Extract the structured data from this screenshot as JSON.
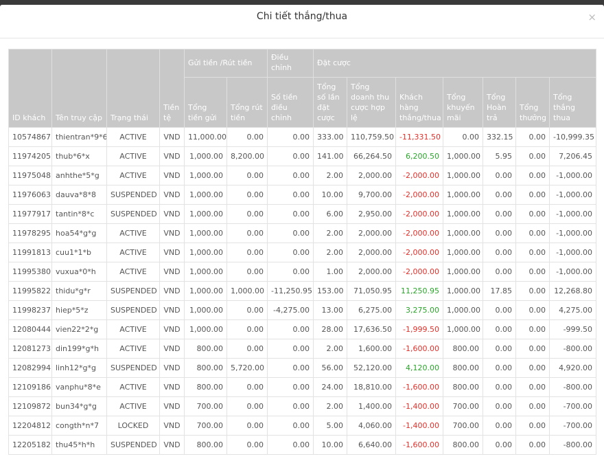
{
  "modal": {
    "title": "Chi tiết thắng/thua",
    "close": "×"
  },
  "table": {
    "groups": [
      "Gửi tiền /Rút tiền",
      "Điều chỉnh",
      "Đặt cược"
    ],
    "headers": [
      "ID khách",
      "Tên truy cập",
      "Trạng thái",
      "Tiền tệ",
      "Tổng tiền gửi",
      "Tổng rút tiền",
      "Số tiền điều chỉnh",
      "Tổng số lần đặt cược",
      "Tổng doanh thu cược hợp lệ",
      "Khách hàng thắng/thua",
      "Tổng khuyến mãi",
      "Tổng Hoàn trả",
      "Tổng thưởng",
      "Tổng thắng thua"
    ],
    "rows": [
      [
        "10574867",
        "thientran*9*6",
        "ACTIVE",
        "VND",
        "11,000.00",
        "0.00",
        "0.00",
        "333.00",
        "110,759.50",
        "-11,331.50",
        "0.00",
        "332.15",
        "0.00",
        "-10,999.35"
      ],
      [
        "11974205",
        "thub*6*x",
        "ACTIVE",
        "VND",
        "1,000.00",
        "8,200.00",
        "0.00",
        "141.00",
        "66,264.50",
        "6,200.50",
        "1,000.00",
        "5.95",
        "0.00",
        "7,206.45"
      ],
      [
        "11975048",
        "anhthe*5*g",
        "ACTIVE",
        "VND",
        "1,000.00",
        "0.00",
        "0.00",
        "2.00",
        "2,000.00",
        "-2,000.00",
        "1,000.00",
        "0.00",
        "0.00",
        "-1,000.00"
      ],
      [
        "11976063",
        "dauva*8*8",
        "SUSPENDED",
        "VND",
        "1,000.00",
        "0.00",
        "0.00",
        "10.00",
        "9,700.00",
        "-2,000.00",
        "1,000.00",
        "0.00",
        "0.00",
        "-1,000.00"
      ],
      [
        "11977917",
        "tantin*8*c",
        "SUSPENDED",
        "VND",
        "1,000.00",
        "0.00",
        "0.00",
        "6.00",
        "2,950.00",
        "-2,000.00",
        "1,000.00",
        "0.00",
        "0.00",
        "-1,000.00"
      ],
      [
        "11978295",
        "hoa54*g*g",
        "ACTIVE",
        "VND",
        "1,000.00",
        "0.00",
        "0.00",
        "2.00",
        "2,000.00",
        "-2,000.00",
        "1,000.00",
        "0.00",
        "0.00",
        "-1,000.00"
      ],
      [
        "11991813",
        "cuu1*1*b",
        "ACTIVE",
        "VND",
        "1,000.00",
        "0.00",
        "0.00",
        "2.00",
        "2,000.00",
        "-2,000.00",
        "1,000.00",
        "0.00",
        "0.00",
        "-1,000.00"
      ],
      [
        "11995380",
        "vuxua*0*h",
        "ACTIVE",
        "VND",
        "1,000.00",
        "0.00",
        "0.00",
        "1.00",
        "2,000.00",
        "-2,000.00",
        "1,000.00",
        "0.00",
        "0.00",
        "-1,000.00"
      ],
      [
        "11995822",
        "thidu*g*r",
        "SUSPENDED",
        "VND",
        "1,000.00",
        "1,000.00",
        "-11,250.95",
        "153.00",
        "71,050.95",
        "11,250.95",
        "1,000.00",
        "17.85",
        "0.00",
        "12,268.80"
      ],
      [
        "11998237",
        "hiep*5*z",
        "SUSPENDED",
        "VND",
        "1,000.00",
        "0.00",
        "-4,275.00",
        "13.00",
        "6,275.00",
        "3,275.00",
        "1,000.00",
        "0.00",
        "0.00",
        "4,275.00"
      ],
      [
        "12080444",
        "vien22*2*g",
        "ACTIVE",
        "VND",
        "1,000.00",
        "0.00",
        "0.00",
        "28.00",
        "17,636.50",
        "-1,999.50",
        "1,000.00",
        "0.00",
        "0.00",
        "-999.50"
      ],
      [
        "12081273",
        "din199*g*h",
        "ACTIVE",
        "VND",
        "800.00",
        "0.00",
        "0.00",
        "2.00",
        "1,600.00",
        "-1,600.00",
        "800.00",
        "0.00",
        "0.00",
        "-800.00"
      ],
      [
        "12082994",
        "linh12*g*g",
        "SUSPENDED",
        "VND",
        "800.00",
        "5,720.00",
        "0.00",
        "56.00",
        "52,120.00",
        "4,120.00",
        "800.00",
        "0.00",
        "0.00",
        "4,920.00"
      ],
      [
        "12109186",
        "vanphu*8*e",
        "ACTIVE",
        "VND",
        "800.00",
        "0.00",
        "0.00",
        "24.00",
        "18,810.00",
        "-1,600.00",
        "800.00",
        "0.00",
        "0.00",
        "-800.00"
      ],
      [
        "12109872",
        "bun34*g*g",
        "ACTIVE",
        "VND",
        "700.00",
        "0.00",
        "0.00",
        "2.00",
        "1,400.00",
        "-1,400.00",
        "700.00",
        "0.00",
        "0.00",
        "-700.00"
      ],
      [
        "12204812",
        "congth*n*7",
        "LOCKED",
        "VND",
        "700.00",
        "0.00",
        "0.00",
        "5.00",
        "4,060.00",
        "-1,400.00",
        "700.00",
        "0.00",
        "0.00",
        "-700.00"
      ],
      [
        "12205182",
        "thu45*h*h",
        "SUSPENDED",
        "VND",
        "800.00",
        "0.00",
        "0.00",
        "10.00",
        "6,640.00",
        "-1,600.00",
        "800.00",
        "0.00",
        "0.00",
        "-800.00"
      ]
    ]
  }
}
